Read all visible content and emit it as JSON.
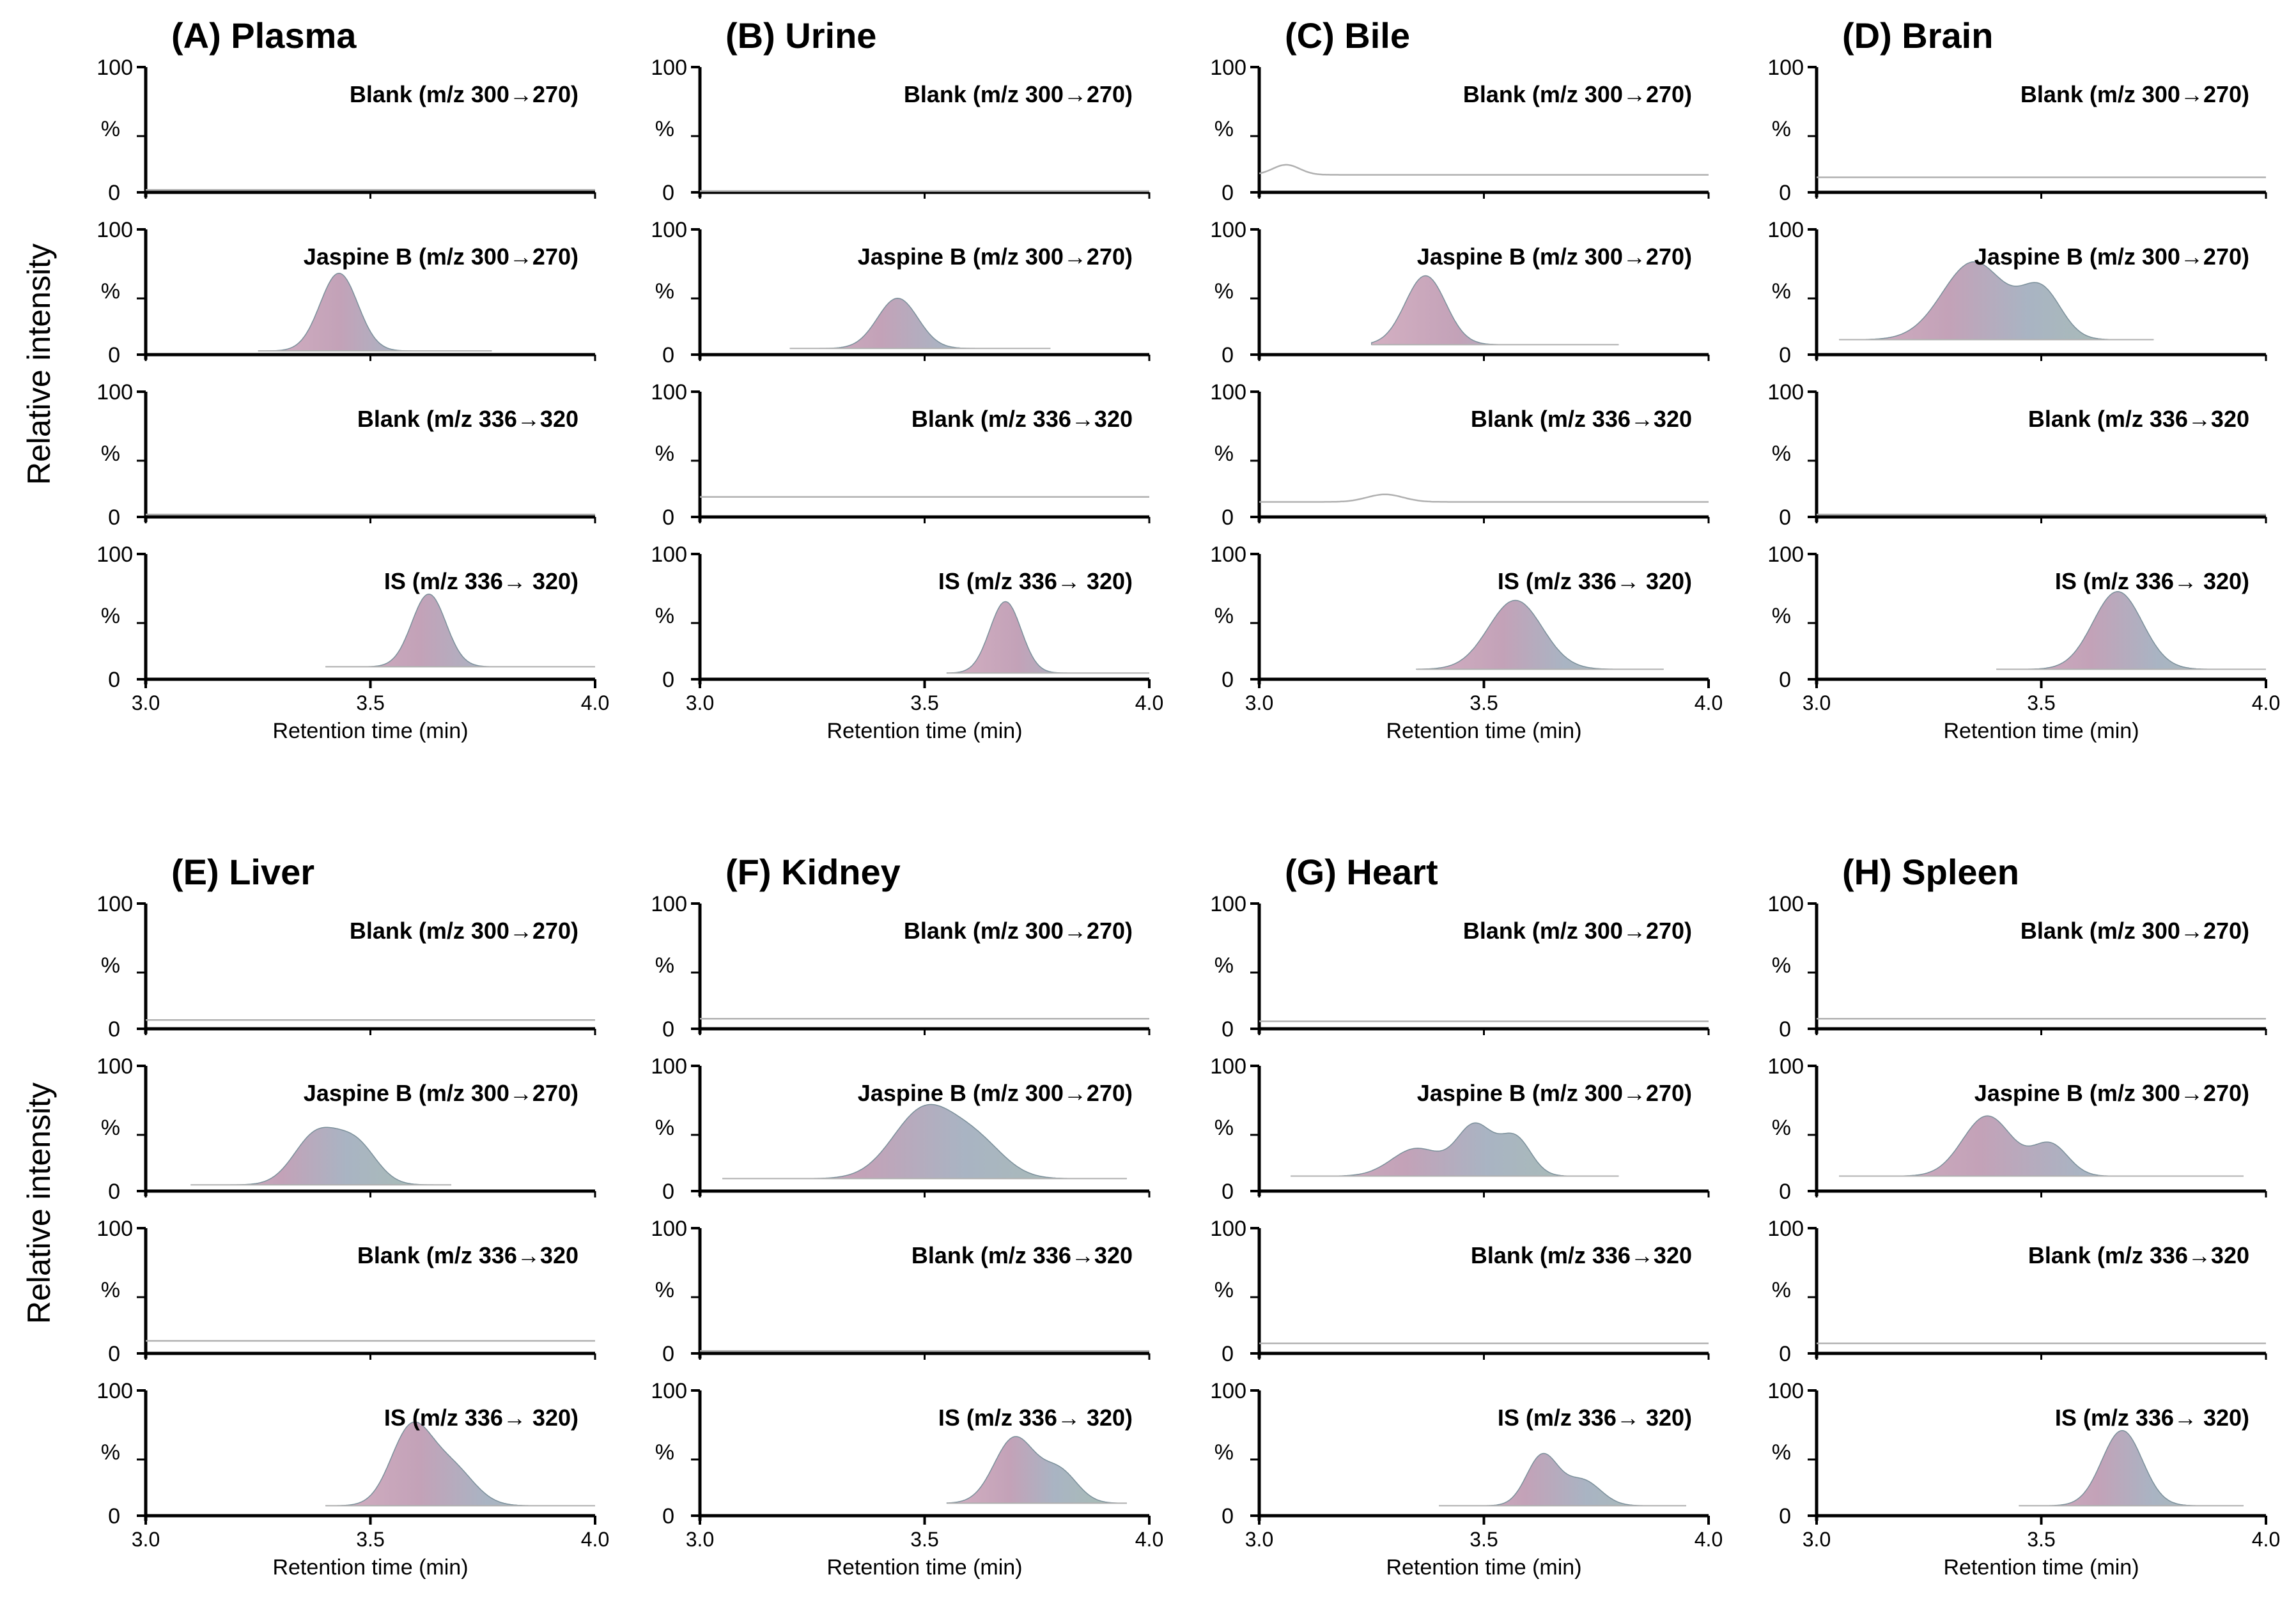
{
  "figure": {
    "y_axis_label": "Relative  intensity",
    "x_axis_label": "Retention time (min)",
    "y_ticks": [
      "100",
      "%",
      "0"
    ]
  },
  "chart_data": {
    "type": "line",
    "description_units": {
      "x": "Retention time (min)",
      "y": "Relative intensity (%)"
    },
    "xlim": [
      3.0,
      4.0
    ],
    "ylim": [
      0,
      100
    ],
    "x_ticks": [
      "3.0",
      "3.5",
      "4.0"
    ],
    "panels": [
      {
        "id": "A",
        "title": "(A) Plasma",
        "xstart": 3.0,
        "traces": [
          {
            "label": "Blank (m/z 300→270)",
            "filled": false,
            "baseline": 2,
            "peaks": []
          },
          {
            "label": "Jaspine B (m/z 300→270)",
            "filled": true,
            "baseline": 3,
            "range": [
              3.25,
              3.77
            ],
            "peaks": [
              {
                "rt": 3.43,
                "height": 62,
                "width": 0.042
              }
            ]
          },
          {
            "label": "Blank (m/z 336→320",
            "filled": false,
            "baseline": 2,
            "peaks": []
          },
          {
            "label": "IS (m/z 336→ 320)",
            "filled": true,
            "baseline": 10,
            "range": [
              3.4,
              4.0
            ],
            "peaks": [
              {
                "rt": 3.63,
                "height": 58,
                "width": 0.038
              }
            ]
          }
        ]
      },
      {
        "id": "B",
        "title": "(B) Urine",
        "xstart": 3.0,
        "traces": [
          {
            "label": "Blank (m/z 300→270)",
            "filled": false,
            "baseline": 1,
            "peaks": []
          },
          {
            "label": "Jaspine B (m/z 300→270)",
            "filled": true,
            "baseline": 5,
            "range": [
              3.2,
              3.78
            ],
            "peaks": [
              {
                "rt": 3.44,
                "height": 40,
                "width": 0.045
              }
            ]
          },
          {
            "label": "Blank (m/z 336→320",
            "filled": false,
            "baseline": 16,
            "peaks": []
          },
          {
            "label": "IS (m/z 336→ 320)",
            "filled": true,
            "baseline": 5,
            "range": [
              3.55,
              4.0
            ],
            "peaks": [
              {
                "rt": 3.68,
                "height": 57,
                "width": 0.035
              }
            ]
          }
        ]
      },
      {
        "id": "C",
        "title": "(C) Bile",
        "xstart": 3.0,
        "traces": [
          {
            "label": "Blank (m/z 300→270)",
            "filled": false,
            "baseline": 14,
            "peaks": [
              {
                "rt": 3.06,
                "height": 8,
                "width": 0.03
              }
            ]
          },
          {
            "label": "Jaspine B (m/z 300→270)",
            "filled": true,
            "baseline": 8,
            "range": [
              3.25,
              3.8
            ],
            "peaks": [
              {
                "rt": 3.37,
                "height": 55,
                "width": 0.045
              }
            ]
          },
          {
            "label": "Blank (m/z 336→320",
            "filled": false,
            "baseline": 12,
            "peaks": [
              {
                "rt": 3.28,
                "height": 6,
                "width": 0.04
              }
            ]
          },
          {
            "label": "IS (m/z 336→ 320)",
            "filled": true,
            "baseline": 8,
            "range": [
              3.35,
              3.9
            ],
            "peaks": [
              {
                "rt": 3.57,
                "height": 55,
                "width": 0.06
              }
            ]
          }
        ]
      },
      {
        "id": "D",
        "title": "(D) Brain",
        "xstart": 3.0,
        "traces": [
          {
            "label": "Blank (m/z 300→270)",
            "filled": false,
            "baseline": 12,
            "peaks": []
          },
          {
            "label": "Jaspine B (m/z 300→270)",
            "filled": true,
            "baseline": 12,
            "range": [
              3.05,
              3.75
            ],
            "peaks": [
              {
                "rt": 3.35,
                "height": 62,
                "width": 0.07
              },
              {
                "rt": 3.5,
                "height": 38,
                "width": 0.045
              }
            ]
          },
          {
            "label": "Blank (m/z 336→320",
            "filled": false,
            "baseline": 2,
            "peaks": []
          },
          {
            "label": "IS (m/z 336→ 320)",
            "filled": true,
            "baseline": 8,
            "range": [
              3.4,
              4.0
            ],
            "peaks": [
              {
                "rt": 3.67,
                "height": 62,
                "width": 0.055
              }
            ]
          }
        ]
      },
      {
        "id": "E",
        "title": "(E) Liver",
        "xstart": 3.0,
        "traces": [
          {
            "label": "Blank (m/z 300→270)",
            "filled": false,
            "baseline": 7,
            "peaks": []
          },
          {
            "label": "Jaspine B (m/z 300→270)",
            "filled": true,
            "baseline": 5,
            "range": [
              3.1,
              3.68
            ],
            "peaks": [
              {
                "rt": 3.38,
                "height": 40,
                "width": 0.05
              },
              {
                "rt": 3.47,
                "height": 30,
                "width": 0.045
              }
            ]
          },
          {
            "label": "Blank (m/z 336→320",
            "filled": false,
            "baseline": 10,
            "peaks": []
          },
          {
            "label": "IS (m/z 336→ 320)",
            "filled": true,
            "baseline": 8,
            "range": [
              3.4,
              4.0
            ],
            "peaks": [
              {
                "rt": 3.59,
                "height": 60,
                "width": 0.045
              },
              {
                "rt": 3.68,
                "height": 30,
                "width": 0.05
              }
            ]
          }
        ]
      },
      {
        "id": "F",
        "title": "(F) Kidney",
        "xstart": 3.0,
        "traces": [
          {
            "label": "Blank (m/z 300→270)",
            "filled": false,
            "baseline": 8,
            "peaks": []
          },
          {
            "label": "Jaspine B (m/z 300→270)",
            "filled": true,
            "baseline": 10,
            "range": [
              3.05,
              3.95
            ],
            "peaks": [
              {
                "rt": 3.5,
                "height": 55,
                "width": 0.07
              },
              {
                "rt": 3.62,
                "height": 25,
                "width": 0.06
              }
            ]
          },
          {
            "label": "Blank (m/z 336→320",
            "filled": false,
            "baseline": 2,
            "peaks": []
          },
          {
            "label": "IS (m/z 336→ 320)",
            "filled": true,
            "baseline": 10,
            "range": [
              3.55,
              3.95
            ],
            "peaks": [
              {
                "rt": 3.7,
                "height": 52,
                "width": 0.045
              },
              {
                "rt": 3.8,
                "height": 25,
                "width": 0.04
              }
            ]
          }
        ]
      },
      {
        "id": "G",
        "title": "(G) Heart",
        "xstart": 3.0,
        "traces": [
          {
            "label": "Blank (m/z 300→270)",
            "filled": false,
            "baseline": 6,
            "peaks": []
          },
          {
            "label": "Jaspine B (m/z 300→270)",
            "filled": true,
            "baseline": 12,
            "range": [
              3.07,
              3.8
            ],
            "peaks": [
              {
                "rt": 3.35,
                "height": 22,
                "width": 0.055
              },
              {
                "rt": 3.48,
                "height": 40,
                "width": 0.04
              },
              {
                "rt": 3.57,
                "height": 30,
                "width": 0.035
              }
            ]
          },
          {
            "label": "Blank (m/z 336→320",
            "filled": false,
            "baseline": 8,
            "peaks": []
          },
          {
            "label": "IS (m/z 336→ 320)",
            "filled": true,
            "baseline": 8,
            "range": [
              3.4,
              3.95
            ],
            "peaks": [
              {
                "rt": 3.63,
                "height": 40,
                "width": 0.035
              },
              {
                "rt": 3.72,
                "height": 20,
                "width": 0.04
              }
            ]
          }
        ]
      },
      {
        "id": "H",
        "title": "(H) Spleen",
        "xstart": 3.0,
        "traces": [
          {
            "label": "Blank (m/z 300→270)",
            "filled": false,
            "baseline": 8,
            "peaks": []
          },
          {
            "label": "Jaspine B (m/z 300→270)",
            "filled": true,
            "baseline": 12,
            "range": [
              3.05,
              3.95
            ],
            "peaks": [
              {
                "rt": 3.38,
                "height": 48,
                "width": 0.055
              },
              {
                "rt": 3.52,
                "height": 25,
                "width": 0.04
              }
            ]
          },
          {
            "label": "Blank (m/z 336→320",
            "filled": false,
            "baseline": 8,
            "peaks": []
          },
          {
            "label": "IS (m/z 336→ 320)",
            "filled": true,
            "baseline": 8,
            "range": [
              3.45,
              3.95
            ],
            "peaks": [
              {
                "rt": 3.68,
                "height": 60,
                "width": 0.045
              }
            ]
          }
        ]
      }
    ]
  },
  "colors": {
    "axis": "#000000",
    "baseline": "#b0b0b0",
    "fill_pink": "#c8a2b5",
    "fill_blue": "#9db3c4",
    "fill_green": "#a7bcaa",
    "fill_edge": "#7a8f9a"
  }
}
